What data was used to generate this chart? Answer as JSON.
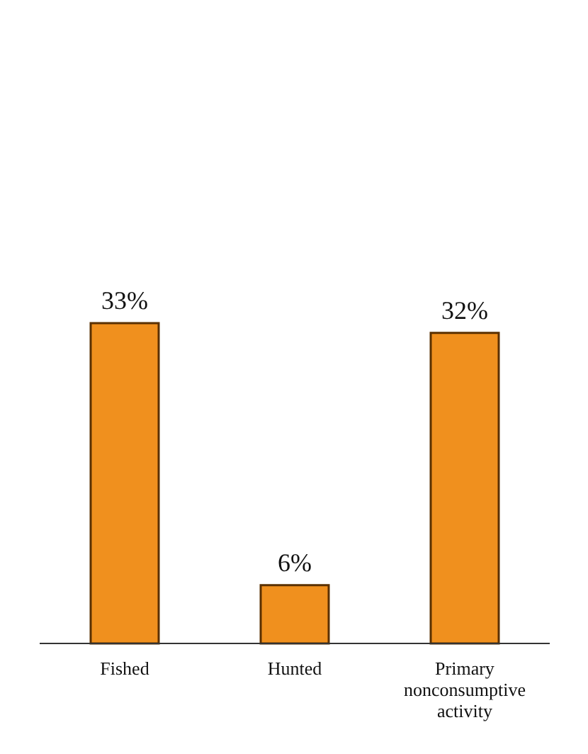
{
  "chart_data": {
    "type": "bar",
    "categories": [
      "Fished",
      "Hunted",
      "Primary nonconsumptive activity"
    ],
    "values": [
      33,
      6,
      32
    ],
    "value_labels": [
      "33%",
      "6%",
      "32%"
    ],
    "color": "#f0901e"
  }
}
